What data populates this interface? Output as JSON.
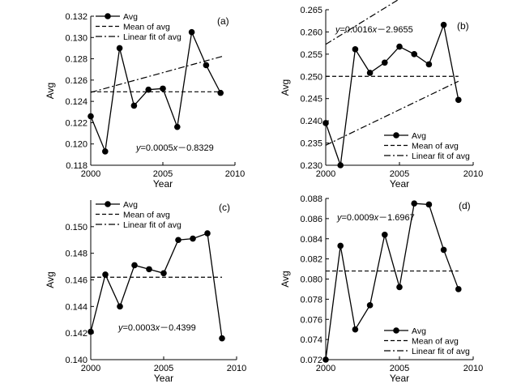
{
  "chart_data": [
    {
      "type": "line",
      "panel": "(a)",
      "xlabel": "Year",
      "ylabel": "Avg",
      "xlim": [
        2000,
        2010
      ],
      "ylim": [
        0.118,
        0.132
      ],
      "x_ticks": [
        "2000",
        "2005",
        "2010"
      ],
      "y_ticks": [
        "0.118",
        "0.120",
        "0.122",
        "0.124",
        "0.126",
        "0.128",
        "0.130",
        "0.132"
      ],
      "x": [
        2000,
        2001,
        2002,
        2003,
        2004,
        2005,
        2006,
        2007,
        2008,
        2009
      ],
      "series": [
        {
          "name": "Avg",
          "values": [
            0.1226,
            0.1193,
            0.129,
            0.1236,
            0.1251,
            0.1252,
            0.1216,
            0.1305,
            0.1274,
            0.1248
          ]
        }
      ],
      "mean": 0.1249,
      "fit": {
        "slope": 0.0005,
        "intercept": -0.8329
      },
      "equation": {
        "y": "y",
        "rest": "=0.0005",
        "x": "x",
        "tail": "－0.8329"
      },
      "legend": [
        "Avg",
        "Mean of avg",
        "Linear fit of avg"
      ],
      "legend_position": "top-left"
    },
    {
      "type": "line",
      "panel": "(b)",
      "xlabel": "Year",
      "ylabel": "Avg",
      "xlim": [
        2000,
        2010
      ],
      "ylim": [
        0.23,
        0.265
      ],
      "x_ticks": [
        "2000",
        "2005",
        "2010"
      ],
      "y_ticks": [
        "0.230",
        "0.235",
        "0.240",
        "0.245",
        "0.250",
        "0.255",
        "0.260",
        "0.265"
      ],
      "x": [
        2000,
        2001,
        2002,
        2003,
        2004,
        2005,
        2006,
        2007,
        2008,
        2009
      ],
      "series": [
        {
          "name": "Avg",
          "values": [
            0.2395,
            0.23,
            0.2561,
            0.2508,
            0.2531,
            0.2567,
            0.255,
            0.2527,
            0.2616,
            0.2447
          ]
        }
      ],
      "mean": 0.25,
      "fit": {
        "slope": 0.0016,
        "intercept": -2.9655
      },
      "equation": {
        "y": "y",
        "rest": "=0.0016",
        "x": "x",
        "tail": "－2.9655"
      },
      "legend": [
        "Avg",
        "Mean of avg",
        "Linear fit of avg"
      ],
      "legend_position": "bottom-right"
    },
    {
      "type": "line",
      "panel": "(c)",
      "xlabel": "Year",
      "ylabel": "Avg",
      "xlim": [
        2000,
        2010
      ],
      "ylim": [
        0.14,
        0.152
      ],
      "x_ticks": [
        "2000",
        "2005",
        "2010"
      ],
      "y_ticks": [
        "0.140",
        "0.142",
        "0.144",
        "0.146",
        "0.148",
        "0.150"
      ],
      "x": [
        2000,
        2001,
        2002,
        2003,
        2004,
        2005,
        2006,
        2007,
        2008,
        2009
      ],
      "series": [
        {
          "name": "Avg",
          "values": [
            0.1421,
            0.1464,
            0.144,
            0.1471,
            0.1468,
            0.1465,
            0.149,
            0.1491,
            0.1495,
            0.1416
          ]
        }
      ],
      "mean": 0.1462,
      "fit": {
        "slope": 0.0003,
        "intercept": -0.4399
      },
      "equation": {
        "y": "y",
        "rest": "=0.0003",
        "x": "x",
        "tail": "－0.4399"
      },
      "legend": [
        "Avg",
        "Mean of avg",
        "Linear fit of avg"
      ],
      "legend_position": "top-left"
    },
    {
      "type": "line",
      "panel": "(d)",
      "xlabel": "Year",
      "ylabel": "Avg",
      "xlim": [
        2000,
        2010
      ],
      "ylim": [
        0.072,
        0.088
      ],
      "x_ticks": [
        "2000",
        "2005",
        "2010"
      ],
      "y_ticks": [
        "0.072",
        "0.074",
        "0.076",
        "0.078",
        "0.080",
        "0.082",
        "0.084",
        "0.086",
        "0.088"
      ],
      "x": [
        2000,
        2001,
        2002,
        2003,
        2004,
        2005,
        2006,
        2007,
        2008,
        2009
      ],
      "series": [
        {
          "name": "Avg",
          "values": [
            0.072,
            0.0833,
            0.075,
            0.0774,
            0.0844,
            0.0792,
            0.0875,
            0.0874,
            0.0829,
            0.079
          ]
        }
      ],
      "mean": 0.0808,
      "fit": {
        "slope": 0.0009,
        "intercept": -1.6967
      },
      "equation": {
        "y": "y",
        "rest": "=0.0009",
        "x": "x",
        "tail": "－1.6967"
      },
      "legend": [
        "Avg",
        "Mean of avg",
        "Linear fit of avg"
      ],
      "legend_position": "bottom-left"
    }
  ]
}
